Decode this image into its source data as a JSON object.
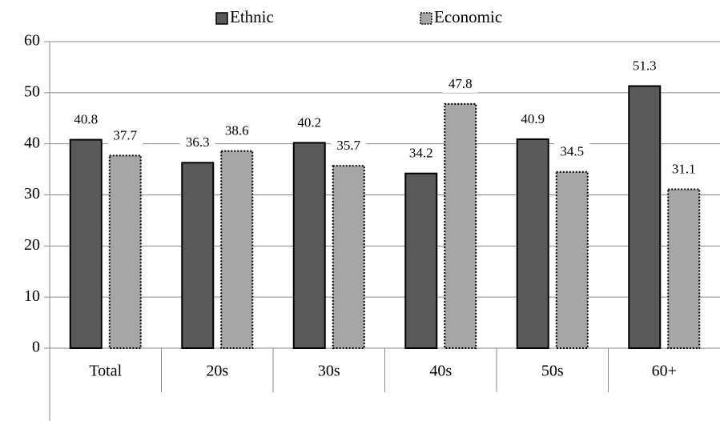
{
  "chart_data": {
    "type": "bar",
    "categories": [
      "Total",
      "20s",
      "30s",
      "40s",
      "50s",
      "60+"
    ],
    "series": [
      {
        "name": "Ethnic",
        "color": "#595959",
        "values": [
          40.8,
          36.3,
          40.2,
          34.2,
          40.9,
          51.3
        ]
      },
      {
        "name": "Economic",
        "color": "#a6a6a6",
        "values": [
          37.7,
          38.6,
          35.7,
          47.8,
          34.5,
          31.1
        ]
      }
    ],
    "ylim": [
      0,
      60
    ],
    "yticks": [
      0,
      10,
      20,
      30,
      40,
      50,
      60
    ],
    "grid": true,
    "legend": "top"
  }
}
